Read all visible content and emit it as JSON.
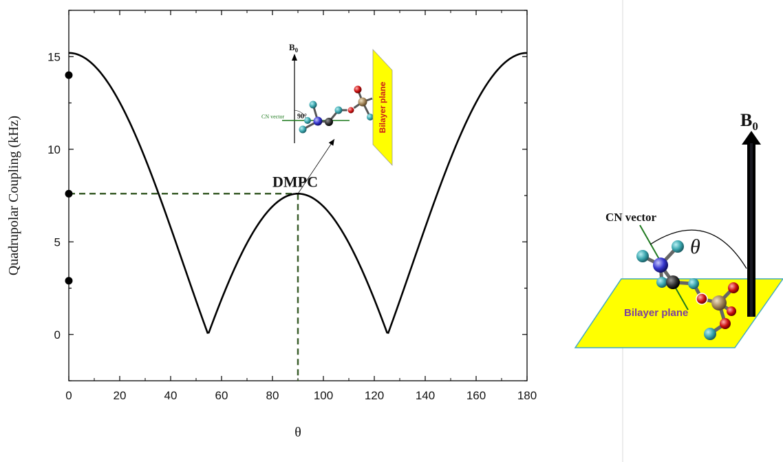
{
  "chart_data": {
    "type": "line",
    "xlabel": "θ",
    "ylabel": "Quadrupolar Coupling (kHz)",
    "xlim": [
      0,
      180
    ],
    "ylim": [
      -2.5,
      17.5
    ],
    "x_ticks": [
      0,
      20,
      40,
      60,
      80,
      100,
      120,
      140,
      160,
      180
    ],
    "y_ticks": [
      0,
      5,
      10,
      15
    ],
    "grid": false,
    "series": [
      {
        "function": "abs(15.2 * (3*cos(theta)^2 - 1) / 2)",
        "color": "#000000",
        "points": [
          [
            0,
            15.2
          ],
          [
            20,
            13.0
          ],
          [
            40,
            5.8
          ],
          [
            54.7,
            0
          ],
          [
            70,
            5.3
          ],
          [
            90,
            7.6
          ],
          [
            110,
            5.3
          ],
          [
            125.3,
            0
          ],
          [
            140,
            5.8
          ],
          [
            160,
            13.0
          ],
          [
            180,
            15.2
          ]
        ]
      }
    ],
    "dots": [
      {
        "x": 0,
        "y": 14.0
      },
      {
        "x": 0,
        "y": 7.6
      },
      {
        "x": 0,
        "y": 2.9
      }
    ],
    "reference_lines": {
      "x": 90,
      "y": 7.6,
      "color": "#3b5e2b",
      "style": "dashed"
    },
    "annotations": [
      {
        "text": "DMPC",
        "x": 90,
        "y": 7.6
      }
    ]
  },
  "inset": {
    "b0_label": "B",
    "b0_subscript": "0",
    "cn_label": "CN vector",
    "angle_label": "90°",
    "plane_label": "Bilayer plane"
  },
  "side_diagram": {
    "b0_label": "B",
    "b0_subscript": "0",
    "cn_label": "CN vector",
    "theta_label": "θ",
    "plane_label": "Bilayer plane",
    "colors": {
      "plane": "#ffff00",
      "plane_border": "#3fa9c4",
      "cn": "#1f7a1f",
      "plane_text": "#7b3fa0"
    }
  }
}
